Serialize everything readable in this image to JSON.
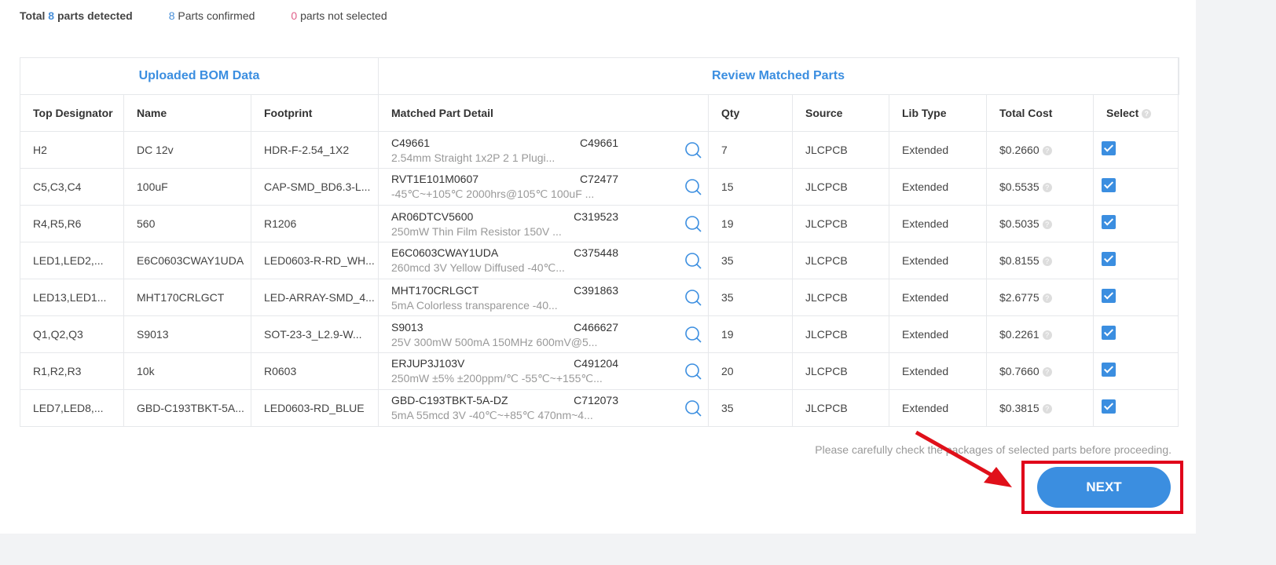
{
  "summary": {
    "total_prefix": "Total",
    "total_count": "8",
    "total_suffix": "parts detected",
    "confirmed_count": "8",
    "confirmed_label": "Parts confirmed",
    "not_selected_count": "0",
    "not_selected_label": "parts not selected"
  },
  "table": {
    "group_headers": [
      "Uploaded BOM Data",
      "Review Matched Parts"
    ],
    "columns": [
      "Top Designator",
      "Name",
      "Footprint",
      "Matched Part Detail",
      "Qty",
      "Source",
      "Lib Type",
      "Total Cost",
      "Select"
    ],
    "rows": [
      {
        "designator": "H2",
        "name": "DC 12v",
        "footprint": "HDR-F-2.54_1X2",
        "mpn": "C49661",
        "lcsc": "C49661",
        "desc": "2.54mm Straight 1x2P 2 1 Plugi...",
        "qty": "7",
        "source": "JLCPCB",
        "lib": "Extended",
        "cost": "$0.2660",
        "selected": true
      },
      {
        "designator": "C5,C3,C4",
        "name": "100uF",
        "footprint": "CAP-SMD_BD6.3-L...",
        "mpn": "RVT1E101M0607",
        "lcsc": "C72477",
        "desc": "-45℃~+105℃ 2000hrs@105℃ 100uF ...",
        "qty": "15",
        "source": "JLCPCB",
        "lib": "Extended",
        "cost": "$0.5535",
        "selected": true
      },
      {
        "designator": "R4,R5,R6",
        "name": "560",
        "footprint": "R1206",
        "mpn": "AR06DTCV5600",
        "lcsc": "C319523",
        "desc": "250mW Thin Film Resistor 150V ...",
        "qty": "19",
        "source": "JLCPCB",
        "lib": "Extended",
        "cost": "$0.5035",
        "selected": true
      },
      {
        "designator": "LED1,LED2,...",
        "name": "E6C0603CWAY1UDA",
        "footprint": "LED0603-R-RD_WH...",
        "mpn": "E6C0603CWAY1UDA",
        "lcsc": "C375448",
        "desc": "260mcd 3V Yellow Diffused -40℃...",
        "qty": "35",
        "source": "JLCPCB",
        "lib": "Extended",
        "cost": "$0.8155",
        "selected": true
      },
      {
        "designator": "LED13,LED1...",
        "name": "MHT170CRLGCT",
        "footprint": "LED-ARRAY-SMD_4...",
        "mpn": "MHT170CRLGCT",
        "lcsc": "C391863",
        "desc": "5mA Colorless transparence -40...",
        "qty": "35",
        "source": "JLCPCB",
        "lib": "Extended",
        "cost": "$2.6775",
        "selected": true
      },
      {
        "designator": "Q1,Q2,Q3",
        "name": "S9013",
        "footprint": "SOT-23-3_L2.9-W...",
        "mpn": "S9013",
        "lcsc": "C466627",
        "desc": "25V 300mW 500mA 150MHz 600mV@5...",
        "qty": "19",
        "source": "JLCPCB",
        "lib": "Extended",
        "cost": "$0.2261",
        "selected": true
      },
      {
        "designator": "R1,R2,R3",
        "name": "10k",
        "footprint": "R0603",
        "mpn": "ERJUP3J103V",
        "lcsc": "C491204",
        "desc": "250mW ±5% ±200ppm/℃ -55℃~+155℃...",
        "qty": "20",
        "source": "JLCPCB",
        "lib": "Extended",
        "cost": "$0.7660",
        "selected": true
      },
      {
        "designator": "LED7,LED8,...",
        "name": "GBD-C193TBKT-5A...",
        "footprint": "LED0603-RD_BLUE",
        "mpn": "GBD-C193TBKT-5A-DZ",
        "lcsc": "C712073",
        "desc": "5mA 55mcd 3V -40℃~+85℃ 470nm~4...",
        "qty": "35",
        "source": "JLCPCB",
        "lib": "Extended",
        "cost": "$0.3815",
        "selected": true
      }
    ]
  },
  "note": "Please carefully check the packages of selected parts before proceeding.",
  "next_label": "NEXT",
  "colors": {
    "accent": "#3b8ee0",
    "highlight": "#e0001a",
    "warning": "#e0608a"
  }
}
